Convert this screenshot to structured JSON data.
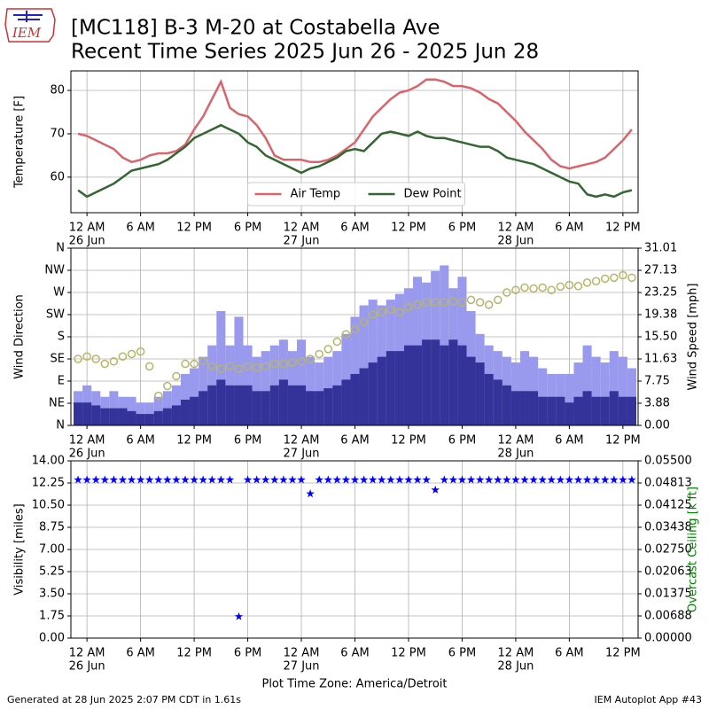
{
  "header": {
    "title_line1": "[MC118] B-3 M-20 at Costabella Ave",
    "title_line2": "Recent Time Series 2025 Jun 26 - 2025 Jun 28",
    "logo_text": "IEM"
  },
  "footer": {
    "generated": "Generated at 28 Jun 2025 2:07 PM CDT in 1.61s",
    "app": "IEM Autoplot App #43",
    "xlabel": "Plot Time Zone: America/Detroit"
  },
  "chart_data": [
    {
      "type": "line",
      "ylabel": "Temperature [F]",
      "grid": true,
      "legend": "lower center",
      "xlim": [
        -1.8,
        61.7
      ],
      "ylim": [
        51.8,
        84.5
      ],
      "yticks": [
        60,
        70,
        80
      ],
      "xticks": [
        {
          "value": 0,
          "label": "12 AM",
          "date": "26 Jun"
        },
        {
          "value": 6,
          "label": "6 AM"
        },
        {
          "value": 12,
          "label": "12 PM"
        },
        {
          "value": 18,
          "label": "6 PM"
        },
        {
          "value": 24,
          "label": "12 AM",
          "date": "27 Jun"
        },
        {
          "value": 30,
          "label": "6 AM"
        },
        {
          "value": 36,
          "label": "12 PM"
        },
        {
          "value": 42,
          "label": "6 PM"
        },
        {
          "value": 48,
          "label": "12 AM",
          "date": "28 Jun"
        },
        {
          "value": 54,
          "label": "6 AM"
        },
        {
          "value": 60,
          "label": "12 PM"
        }
      ],
      "x": [
        -1,
        0,
        1,
        2,
        3,
        4,
        5,
        6,
        7,
        8,
        9,
        10,
        11,
        12,
        13,
        14,
        15,
        16,
        17,
        18,
        19,
        20,
        21,
        22,
        23,
        24,
        25,
        26,
        27,
        28,
        29,
        30,
        31,
        32,
        33,
        34,
        35,
        36,
        37,
        38,
        39,
        40,
        41,
        42,
        43,
        44,
        45,
        46,
        47,
        48,
        49,
        50,
        51,
        52,
        53,
        54,
        55,
        56,
        57,
        58,
        59,
        60,
        61
      ],
      "series": [
        {
          "name": "Air Temp",
          "color": "#d9646b",
          "values": [
            70,
            69.5,
            68.5,
            67.5,
            66.5,
            64.5,
            63.5,
            64,
            65,
            65.5,
            65.5,
            66,
            67.5,
            71,
            74,
            78,
            82,
            76,
            74.5,
            74,
            72,
            69,
            65,
            64,
            64,
            64,
            63.5,
            63.5,
            64,
            65,
            66.5,
            68,
            71,
            74,
            76,
            78,
            79.5,
            80,
            81,
            82.5,
            82.5,
            82,
            81,
            81,
            80.5,
            79.5,
            78,
            77,
            75,
            73,
            70.5,
            68.5,
            66.5,
            64,
            62.5,
            62,
            62.5,
            63,
            63.5,
            64.5,
            66.5,
            68.5,
            71
          ]
        },
        {
          "name": "Dew Point",
          "color": "#336633",
          "values": [
            57,
            55.5,
            56.5,
            57.5,
            58.5,
            60,
            61.5,
            62,
            62.5,
            63,
            64,
            65.5,
            67,
            69,
            70,
            71,
            72,
            71,
            70,
            68,
            67,
            65,
            64,
            63,
            62,
            61,
            62,
            62.5,
            63.5,
            64.5,
            66,
            66.5,
            66,
            68,
            70,
            70.5,
            70,
            69.5,
            70.5,
            69.5,
            69,
            69,
            68.5,
            68,
            67.5,
            67,
            67,
            66,
            64.5,
            64,
            63.5,
            63,
            62,
            61,
            60,
            59,
            58.5,
            56,
            55.5,
            56,
            55.5,
            56.5,
            57
          ]
        }
      ]
    },
    {
      "type": "combo",
      "ylabel": "Wind Direction",
      "y2label": "Wind Speed [mph]",
      "grid": true,
      "xlim": [
        -1.8,
        61.7
      ],
      "ylim": [
        0,
        360
      ],
      "y2lim": [
        0,
        31.01
      ],
      "yticks": [
        {
          "value": 0,
          "label": "N"
        },
        {
          "value": 45,
          "label": "NE"
        },
        {
          "value": 90,
          "label": "E"
        },
        {
          "value": 135,
          "label": "SE"
        },
        {
          "value": 180,
          "label": "S"
        },
        {
          "value": 225,
          "label": "SW"
        },
        {
          "value": 270,
          "label": "W"
        },
        {
          "value": 315,
          "label": "NW"
        },
        {
          "value": 360,
          "label": "N"
        }
      ],
      "y2ticks": [
        {
          "value": 0,
          "label": "0.00"
        },
        {
          "value": 3.88,
          "label": "3.88"
        },
        {
          "value": 7.75,
          "label": "7.75"
        },
        {
          "value": 11.63,
          "label": "11.63"
        },
        {
          "value": 15.5,
          "label": "15.50"
        },
        {
          "value": 19.38,
          "label": "19.38"
        },
        {
          "value": 23.25,
          "label": "23.25"
        },
        {
          "value": 27.13,
          "label": "27.13"
        },
        {
          "value": 31.01,
          "label": "31.01"
        }
      ],
      "xticks": [
        {
          "value": 0,
          "label": "12 AM",
          "date": "26 Jun"
        },
        {
          "value": 6,
          "label": "6 AM"
        },
        {
          "value": 12,
          "label": "12 PM"
        },
        {
          "value": 18,
          "label": "6 PM"
        },
        {
          "value": 24,
          "label": "12 AM",
          "date": "27 Jun"
        },
        {
          "value": 30,
          "label": "6 AM"
        },
        {
          "value": 36,
          "label": "12 PM"
        },
        {
          "value": 42,
          "label": "6 PM"
        },
        {
          "value": 48,
          "label": "12 AM",
          "date": "28 Jun"
        },
        {
          "value": 54,
          "label": "6 AM"
        },
        {
          "value": 60,
          "label": "12 PM"
        }
      ],
      "x": [
        -1,
        0,
        1,
        2,
        3,
        4,
        5,
        6,
        7,
        8,
        9,
        10,
        11,
        12,
        13,
        14,
        15,
        16,
        17,
        18,
        19,
        20,
        21,
        22,
        23,
        24,
        25,
        26,
        27,
        28,
        29,
        30,
        31,
        32,
        33,
        34,
        35,
        36,
        37,
        38,
        39,
        40,
        41,
        42,
        43,
        44,
        45,
        46,
        47,
        48,
        49,
        50,
        51,
        52,
        53,
        54,
        55,
        56,
        57,
        58,
        59,
        60,
        61
      ],
      "series": [
        {
          "type": "bar",
          "axis": "y2",
          "color": "#9999ee",
          "values": [
            6,
            7,
            6,
            5,
            6,
            5,
            5,
            4,
            4,
            5,
            6,
            7,
            9,
            10,
            12,
            14,
            20,
            14,
            19,
            14,
            12,
            13,
            14,
            15,
            13,
            15,
            12,
            11,
            12,
            13,
            16,
            19,
            21,
            22,
            21,
            22,
            23,
            24,
            26,
            25,
            27,
            28,
            24,
            26,
            20,
            16,
            14,
            13,
            12,
            11,
            13,
            12,
            10,
            9,
            9,
            9,
            11,
            14,
            12,
            11,
            13,
            12,
            10
          ]
        },
        {
          "type": "bar",
          "axis": "y2",
          "color": "#333399",
          "values": [
            4,
            4,
            3.5,
            3,
            3,
            3,
            2.5,
            2,
            2,
            2.5,
            3,
            3.5,
            4.5,
            5,
            6,
            7,
            8,
            7,
            7,
            7,
            6,
            6,
            7,
            8,
            7,
            7,
            6,
            6,
            6.5,
            7,
            8,
            9,
            10,
            11,
            12,
            13,
            13,
            14,
            14,
            15,
            15,
            14,
            15,
            14,
            12,
            11,
            9,
            8,
            7,
            6,
            6,
            6,
            5,
            5,
            5,
            4,
            5,
            6,
            5,
            5,
            6,
            5,
            5
          ]
        },
        {
          "type": "scatter",
          "axis": "y",
          "color": "#b5b56a",
          "values": [
            135,
            140,
            135,
            125,
            130,
            140,
            145,
            150,
            120,
            60,
            80,
            100,
            125,
            125,
            130,
            120,
            115,
            120,
            115,
            120,
            118,
            120,
            125,
            125,
            128,
            130,
            135,
            145,
            155,
            170,
            185,
            195,
            210,
            225,
            230,
            235,
            230,
            240,
            245,
            250,
            250,
            250,
            252,
            250,
            255,
            250,
            245,
            255,
            270,
            275,
            280,
            278,
            280,
            275,
            282,
            285,
            283,
            290,
            293,
            298,
            300,
            305,
            300
          ]
        }
      ]
    },
    {
      "type": "scatter",
      "ylabel": "Visibility [miles]",
      "y2label": "Overcast Ceiling [k ft]",
      "y2color": "#008000",
      "grid": true,
      "xlim": [
        -1.8,
        61.7
      ],
      "ylim": [
        0,
        14
      ],
      "y2lim": [
        0,
        0.055
      ],
      "yticks": [
        {
          "value": 0,
          "label": "0.00"
        },
        {
          "value": 1.75,
          "label": "1.75"
        },
        {
          "value": 3.5,
          "label": "3.50"
        },
        {
          "value": 5.25,
          "label": "5.25"
        },
        {
          "value": 7,
          "label": "7.00"
        },
        {
          "value": 8.75,
          "label": "8.75"
        },
        {
          "value": 10.5,
          "label": "10.50"
        },
        {
          "value": 12.25,
          "label": "12.25"
        },
        {
          "value": 14,
          "label": "14.00"
        }
      ],
      "y2ticks": [
        {
          "value": 0,
          "label": "0.00000"
        },
        {
          "value": 0.006875,
          "label": "0.00688"
        },
        {
          "value": 0.01375,
          "label": "0.01375"
        },
        {
          "value": 0.020625,
          "label": "0.02063"
        },
        {
          "value": 0.0275,
          "label": "0.02750"
        },
        {
          "value": 0.034375,
          "label": "0.03438"
        },
        {
          "value": 0.04125,
          "label": "0.04125"
        },
        {
          "value": 0.048125,
          "label": "0.04813"
        },
        {
          "value": 0.055,
          "label": "0.05500"
        }
      ],
      "xticks": [
        {
          "value": 0,
          "label": "12 AM",
          "date": "26 Jun"
        },
        {
          "value": 6,
          "label": "6 AM"
        },
        {
          "value": 12,
          "label": "12 PM"
        },
        {
          "value": 18,
          "label": "6 PM"
        },
        {
          "value": 24,
          "label": "12 AM",
          "date": "27 Jun"
        },
        {
          "value": 30,
          "label": "6 AM"
        },
        {
          "value": 36,
          "label": "12 PM"
        },
        {
          "value": 42,
          "label": "6 PM"
        },
        {
          "value": 48,
          "label": "12 AM",
          "date": "28 Jun"
        },
        {
          "value": 54,
          "label": "6 AM"
        },
        {
          "value": 60,
          "label": "12 PM"
        }
      ],
      "x": [
        -1,
        0,
        1,
        2,
        3,
        4,
        5,
        6,
        7,
        8,
        9,
        10,
        11,
        12,
        13,
        14,
        15,
        16,
        17,
        18,
        19,
        20,
        21,
        22,
        23,
        24,
        25,
        26,
        27,
        28,
        29,
        30,
        31,
        32,
        33,
        34,
        35,
        36,
        37,
        38,
        39,
        40,
        41,
        42,
        43,
        44,
        45,
        46,
        47,
        48,
        49,
        50,
        51,
        52,
        53,
        54,
        55,
        56,
        57,
        58,
        59,
        60,
        61
      ],
      "series": [
        {
          "type": "scatter",
          "color": "#0000ff",
          "values": [
            12.5,
            12.5,
            12.5,
            12.5,
            12.5,
            12.5,
            12.5,
            12.5,
            12.5,
            12.5,
            12.5,
            12.5,
            12.5,
            12.5,
            12.5,
            12.5,
            12.5,
            12.5,
            1.7,
            12.5,
            12.5,
            12.5,
            12.5,
            12.5,
            12.5,
            12.5,
            11.4,
            12.5,
            12.5,
            12.5,
            12.5,
            12.5,
            12.5,
            12.5,
            12.5,
            12.5,
            12.5,
            12.5,
            12.5,
            12.5,
            11.7,
            12.5,
            12.5,
            12.5,
            12.5,
            12.5,
            12.5,
            12.5,
            12.5,
            12.5,
            12.5,
            12.5,
            12.5,
            12.5,
            12.5,
            12.5,
            12.5,
            12.5,
            12.5,
            12.5,
            12.5,
            12.5,
            12.5
          ]
        }
      ]
    }
  ]
}
